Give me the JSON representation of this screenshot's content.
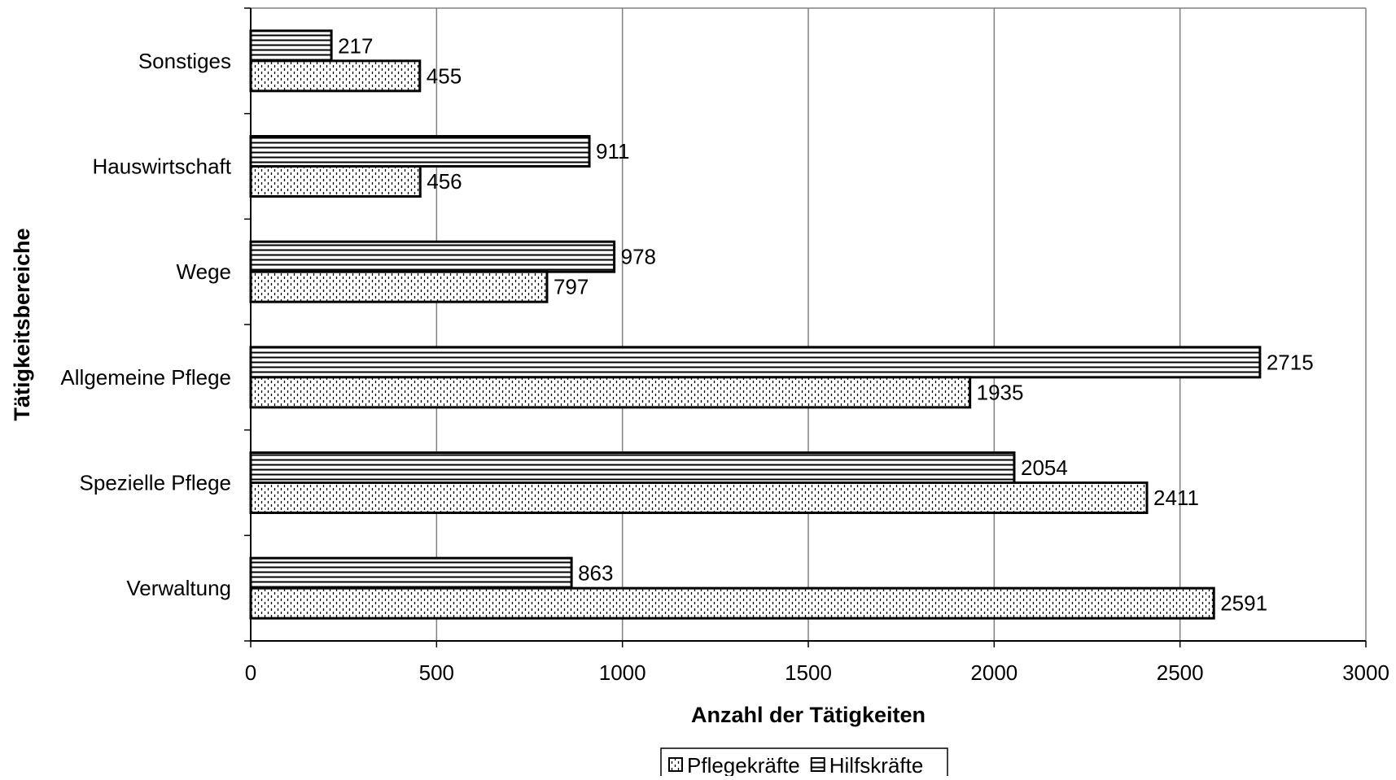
{
  "chart_data": {
    "type": "bar",
    "orientation": "horizontal",
    "categories": [
      "Sonstiges",
      "Hauswirtschaft",
      "Wege",
      "Allgemeine Pflege",
      "Spezielle Pflege",
      "Verwaltung"
    ],
    "series": [
      {
        "name": "Hilfskräfte",
        "pattern": "horizontal-stripes",
        "values": [
          217,
          911,
          978,
          2715,
          2054,
          863
        ]
      },
      {
        "name": "Pflegekräfte",
        "pattern": "dotted",
        "values": [
          455,
          456,
          797,
          1935,
          2411,
          2591
        ]
      }
    ],
    "xlabel": "Anzahl der Tätigkeiten",
    "ylabel": "Tätigkeitsbereiche",
    "xlim": [
      0,
      3000
    ],
    "xticks": [
      0,
      500,
      1000,
      1500,
      2000,
      2500,
      3000
    ],
    "grid": "vertical",
    "legend_position": "bottom",
    "legend_order": [
      "Pflegekräfte",
      "Hilfskräfte"
    ],
    "colors": {
      "bar_fill": "#ffffff",
      "bar_stroke": "#000000",
      "grid": "#808080"
    }
  }
}
